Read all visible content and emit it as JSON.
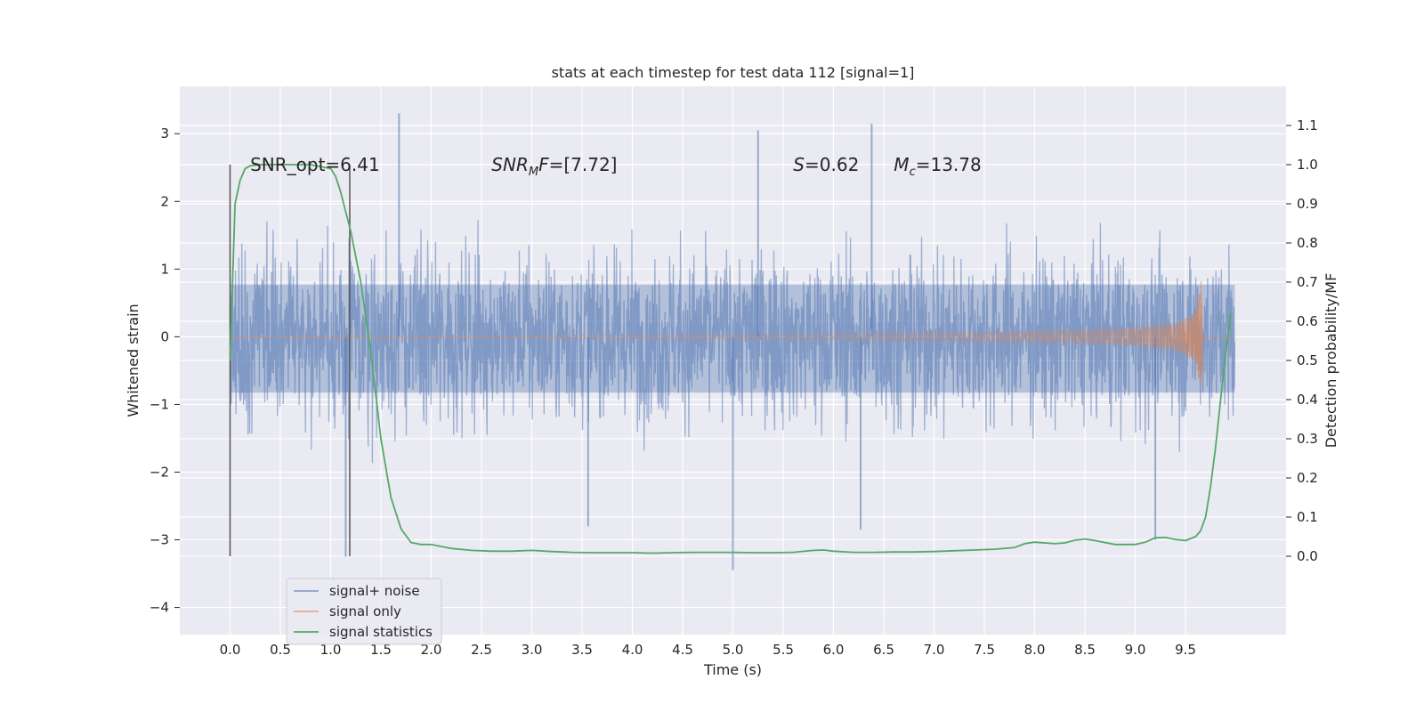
{
  "chart_data": {
    "type": "line",
    "title": "stats at each timestep for test data 112 [signal=1]",
    "xlabel": "Time (s)",
    "ylabel": "Whitened strain",
    "y2label": "Detection probability/MF",
    "xlim": [
      -0.5,
      10.5
    ],
    "ylim": [
      -4.4,
      3.7
    ],
    "y2lim": [
      -0.2,
      1.2
    ],
    "xticks": [
      0.0,
      0.5,
      1.0,
      1.5,
      2.0,
      2.5,
      3.0,
      3.5,
      4.0,
      4.5,
      5.0,
      5.5,
      6.0,
      6.5,
      7.0,
      7.5,
      8.0,
      8.5,
      9.0,
      9.5
    ],
    "xtick_labels": [
      "0.0",
      "0.5",
      "1.0",
      "1.5",
      "2.0",
      "2.5",
      "3.0",
      "3.5",
      "4.0",
      "4.5",
      "5.0",
      "5.5",
      "6.0",
      "6.5",
      "7.0",
      "7.5",
      "8.0",
      "8.5",
      "9.0",
      "9.5"
    ],
    "yticks": [
      3,
      2,
      1,
      0,
      -1,
      -2,
      -3,
      -4
    ],
    "ytick_labels": [
      "3",
      "2",
      "1",
      "0",
      "−1",
      "−2",
      "−3",
      "−4"
    ],
    "y2ticks": [
      1.1,
      1.0,
      0.9,
      0.8,
      0.7,
      0.6,
      0.5,
      0.4,
      0.3,
      0.2,
      0.1,
      0.0
    ],
    "y2tick_labels": [
      "1.1",
      "1.0",
      "0.9",
      "0.8",
      "0.7",
      "0.6",
      "0.5",
      "0.4",
      "0.3",
      "0.2",
      "0.1",
      "0.0"
    ],
    "grid": true,
    "legend_position": "lower-left",
    "series": [
      {
        "name": "signal+ noise",
        "color": "#4c72b0",
        "axis": "left",
        "x_range": [
          0.0,
          9.99
        ],
        "typical_band": [
          -1.5,
          1.4
        ],
        "peaks": [
          [
            1.68,
            3.3
          ],
          [
            6.38,
            3.15
          ],
          [
            5.25,
            3.05
          ],
          [
            1.15,
            -3.25
          ],
          [
            5.0,
            -3.45
          ],
          [
            6.27,
            -2.85
          ],
          [
            3.56,
            -2.8
          ],
          [
            9.2,
            -3.0
          ]
        ]
      },
      {
        "name": "signal only",
        "color": "#dd8452",
        "axis": "left",
        "x": [
          0.0,
          2.0,
          4.0,
          5.5,
          6.5,
          7.5,
          8.5,
          9.0,
          9.4,
          9.6,
          9.66,
          9.67,
          9.99
        ],
        "amplitude": [
          0.01,
          0.01,
          0.02,
          0.03,
          0.05,
          0.07,
          0.1,
          0.13,
          0.2,
          0.35,
          0.9,
          0.0,
          0.0
        ]
      },
      {
        "name": "signal statistics",
        "color": "#55a868",
        "axis": "right",
        "x": [
          0.0,
          0.05,
          0.1,
          0.15,
          0.2,
          0.3,
          0.5,
          0.8,
          1.0,
          1.05,
          1.1,
          1.15,
          1.2,
          1.3,
          1.4,
          1.5,
          1.6,
          1.7,
          1.8,
          1.9,
          2.0,
          2.2,
          2.4,
          2.6,
          2.8,
          3.0,
          3.2,
          3.4,
          3.6,
          3.8,
          4.0,
          4.2,
          4.4,
          4.6,
          4.8,
          5.0,
          5.2,
          5.4,
          5.6,
          5.8,
          5.9,
          6.0,
          6.2,
          6.4,
          6.6,
          6.8,
          7.0,
          7.2,
          7.4,
          7.6,
          7.8,
          7.9,
          8.0,
          8.2,
          8.3,
          8.4,
          8.5,
          8.6,
          8.8,
          9.0,
          9.1,
          9.2,
          9.3,
          9.4,
          9.5,
          9.6,
          9.65,
          9.7,
          9.75,
          9.8,
          9.85,
          9.9,
          9.95
        ],
        "y": [
          0.5,
          0.9,
          0.96,
          0.99,
          0.997,
          1.0,
          1.0,
          1.0,
          0.99,
          0.97,
          0.93,
          0.88,
          0.83,
          0.7,
          0.52,
          0.3,
          0.15,
          0.07,
          0.035,
          0.03,
          0.03,
          0.02,
          0.015,
          0.013,
          0.013,
          0.015,
          0.012,
          0.01,
          0.009,
          0.009,
          0.009,
          0.008,
          0.009,
          0.01,
          0.01,
          0.01,
          0.009,
          0.009,
          0.01,
          0.015,
          0.016,
          0.013,
          0.01,
          0.01,
          0.011,
          0.011,
          0.012,
          0.014,
          0.016,
          0.018,
          0.022,
          0.032,
          0.036,
          0.032,
          0.034,
          0.041,
          0.044,
          0.04,
          0.03,
          0.03,
          0.036,
          0.047,
          0.048,
          0.043,
          0.04,
          0.05,
          0.065,
          0.1,
          0.18,
          0.28,
          0.4,
          0.52,
          0.62
        ]
      }
    ],
    "vlines": [
      0.0,
      1.19
    ],
    "annotations": [
      {
        "x": 0.2,
        "y": 2.45,
        "text": "SNR_opt=6.41",
        "math": false
      },
      {
        "x": 2.6,
        "y": 2.45,
        "text": "SNR",
        "sub": "M",
        "tail": "F=[7.72]",
        "math": true
      },
      {
        "x": 5.6,
        "y": 2.45,
        "text": "S",
        "sub": "",
        "tail": "=0.62",
        "math": true
      },
      {
        "x": 6.6,
        "y": 2.45,
        "text": "M",
        "sub": "c",
        "tail": "=13.78",
        "math": true
      }
    ]
  }
}
